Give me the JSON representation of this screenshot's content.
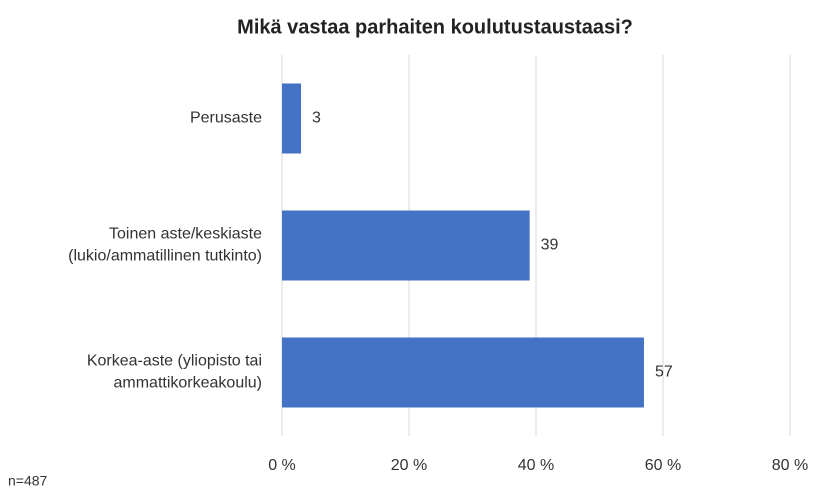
{
  "chart_data": {
    "type": "bar",
    "orientation": "horizontal",
    "title": "Mikä vastaa parhaiten koulutustaustaasi?",
    "categories": [
      [
        "Perusaste"
      ],
      [
        "Toinen aste/keskiaste",
        "(lukio/ammatillinen tutkinto)"
      ],
      [
        "Korkea-aste (yliopisto tai",
        "ammattikorkeakoulu)"
      ]
    ],
    "values": [
      3,
      39,
      57
    ],
    "color": "#4472c4",
    "xlim": [
      0,
      80
    ],
    "xticks": [
      {
        "value": 0,
        "label": "0 %"
      },
      {
        "value": 20,
        "label": "20 %"
      },
      {
        "value": 40,
        "label": "40 %"
      },
      {
        "value": 60,
        "label": "60 %"
      },
      {
        "value": 80,
        "label": "80 %"
      }
    ],
    "grid": true,
    "footnote": "n=487"
  }
}
